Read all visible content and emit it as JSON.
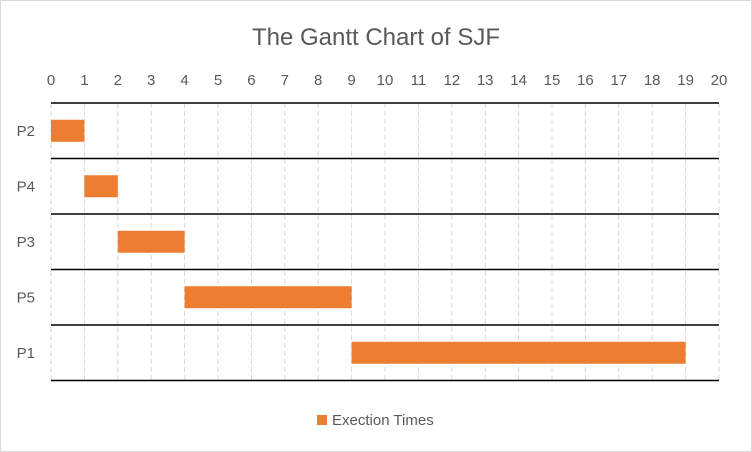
{
  "chart_data": {
    "type": "bar",
    "orientation": "horizontal",
    "stacked": true,
    "title": "The Gantt Chart of SJF",
    "xlabel": "",
    "ylabel": "",
    "xlim": [
      0,
      20
    ],
    "x_ticks": [
      "0",
      "1",
      "2",
      "3",
      "4",
      "5",
      "6",
      "7",
      "8",
      "9",
      "10",
      "11",
      "12",
      "13",
      "14",
      "15",
      "16",
      "17",
      "18",
      "19",
      "20"
    ],
    "x_axis_position": "top",
    "grid": true,
    "categories": [
      "P2",
      "P4",
      "P3",
      "P5",
      "P1"
    ],
    "series": [
      {
        "name": "",
        "visible": false,
        "values": [
          0,
          1,
          2,
          4,
          9
        ]
      },
      {
        "name": "Exection Times",
        "visible": true,
        "color": "#ed7d31",
        "values": [
          1,
          1,
          2,
          5,
          10
        ]
      }
    ],
    "legend": {
      "position": "bottom",
      "entries": [
        "Exection Times"
      ]
    }
  }
}
